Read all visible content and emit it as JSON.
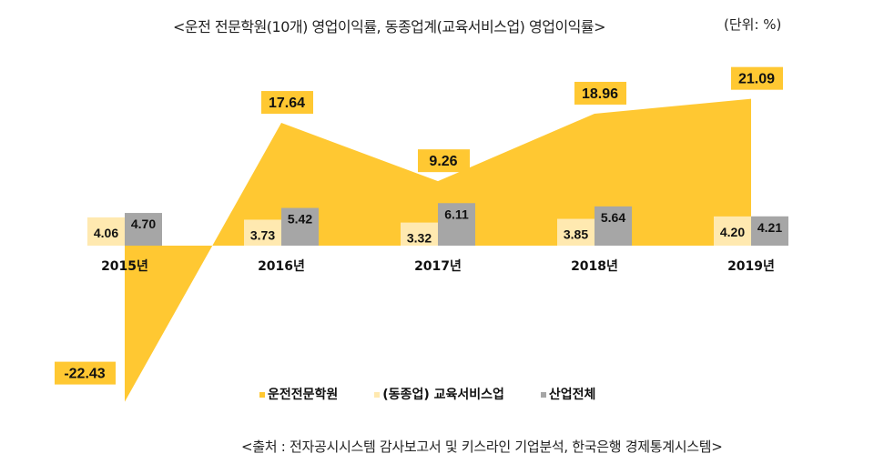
{
  "title": "<운전 전문학원(10개) 영업이익률, 동종업계(교육서비스업) 영업이익률>",
  "unit": "(단위: %)",
  "source": "<출처 : 전자공시시스템 감사보고서 및 키스라인 기업분석, 한국은행 경제통계시스템>",
  "chart_data": {
    "type": "bar+area",
    "categories": [
      "2015년",
      "2016년",
      "2017년",
      "2018년",
      "2019년"
    ],
    "series": [
      {
        "name": "운전전문학원",
        "type": "area",
        "color": "#FFC832",
        "values": [
          -22.43,
          17.64,
          9.26,
          18.96,
          21.09
        ]
      },
      {
        "name": "(동종업) 교육서비스업",
        "type": "bar",
        "color": "#FFE9B0",
        "values": [
          4.06,
          3.73,
          3.32,
          3.85,
          4.2
        ]
      },
      {
        "name": "산업전체",
        "type": "bar",
        "color": "#A6A6A6",
        "values": [
          4.7,
          5.42,
          6.11,
          5.64,
          4.21
        ]
      }
    ],
    "legend": "bottom",
    "grid": false
  }
}
